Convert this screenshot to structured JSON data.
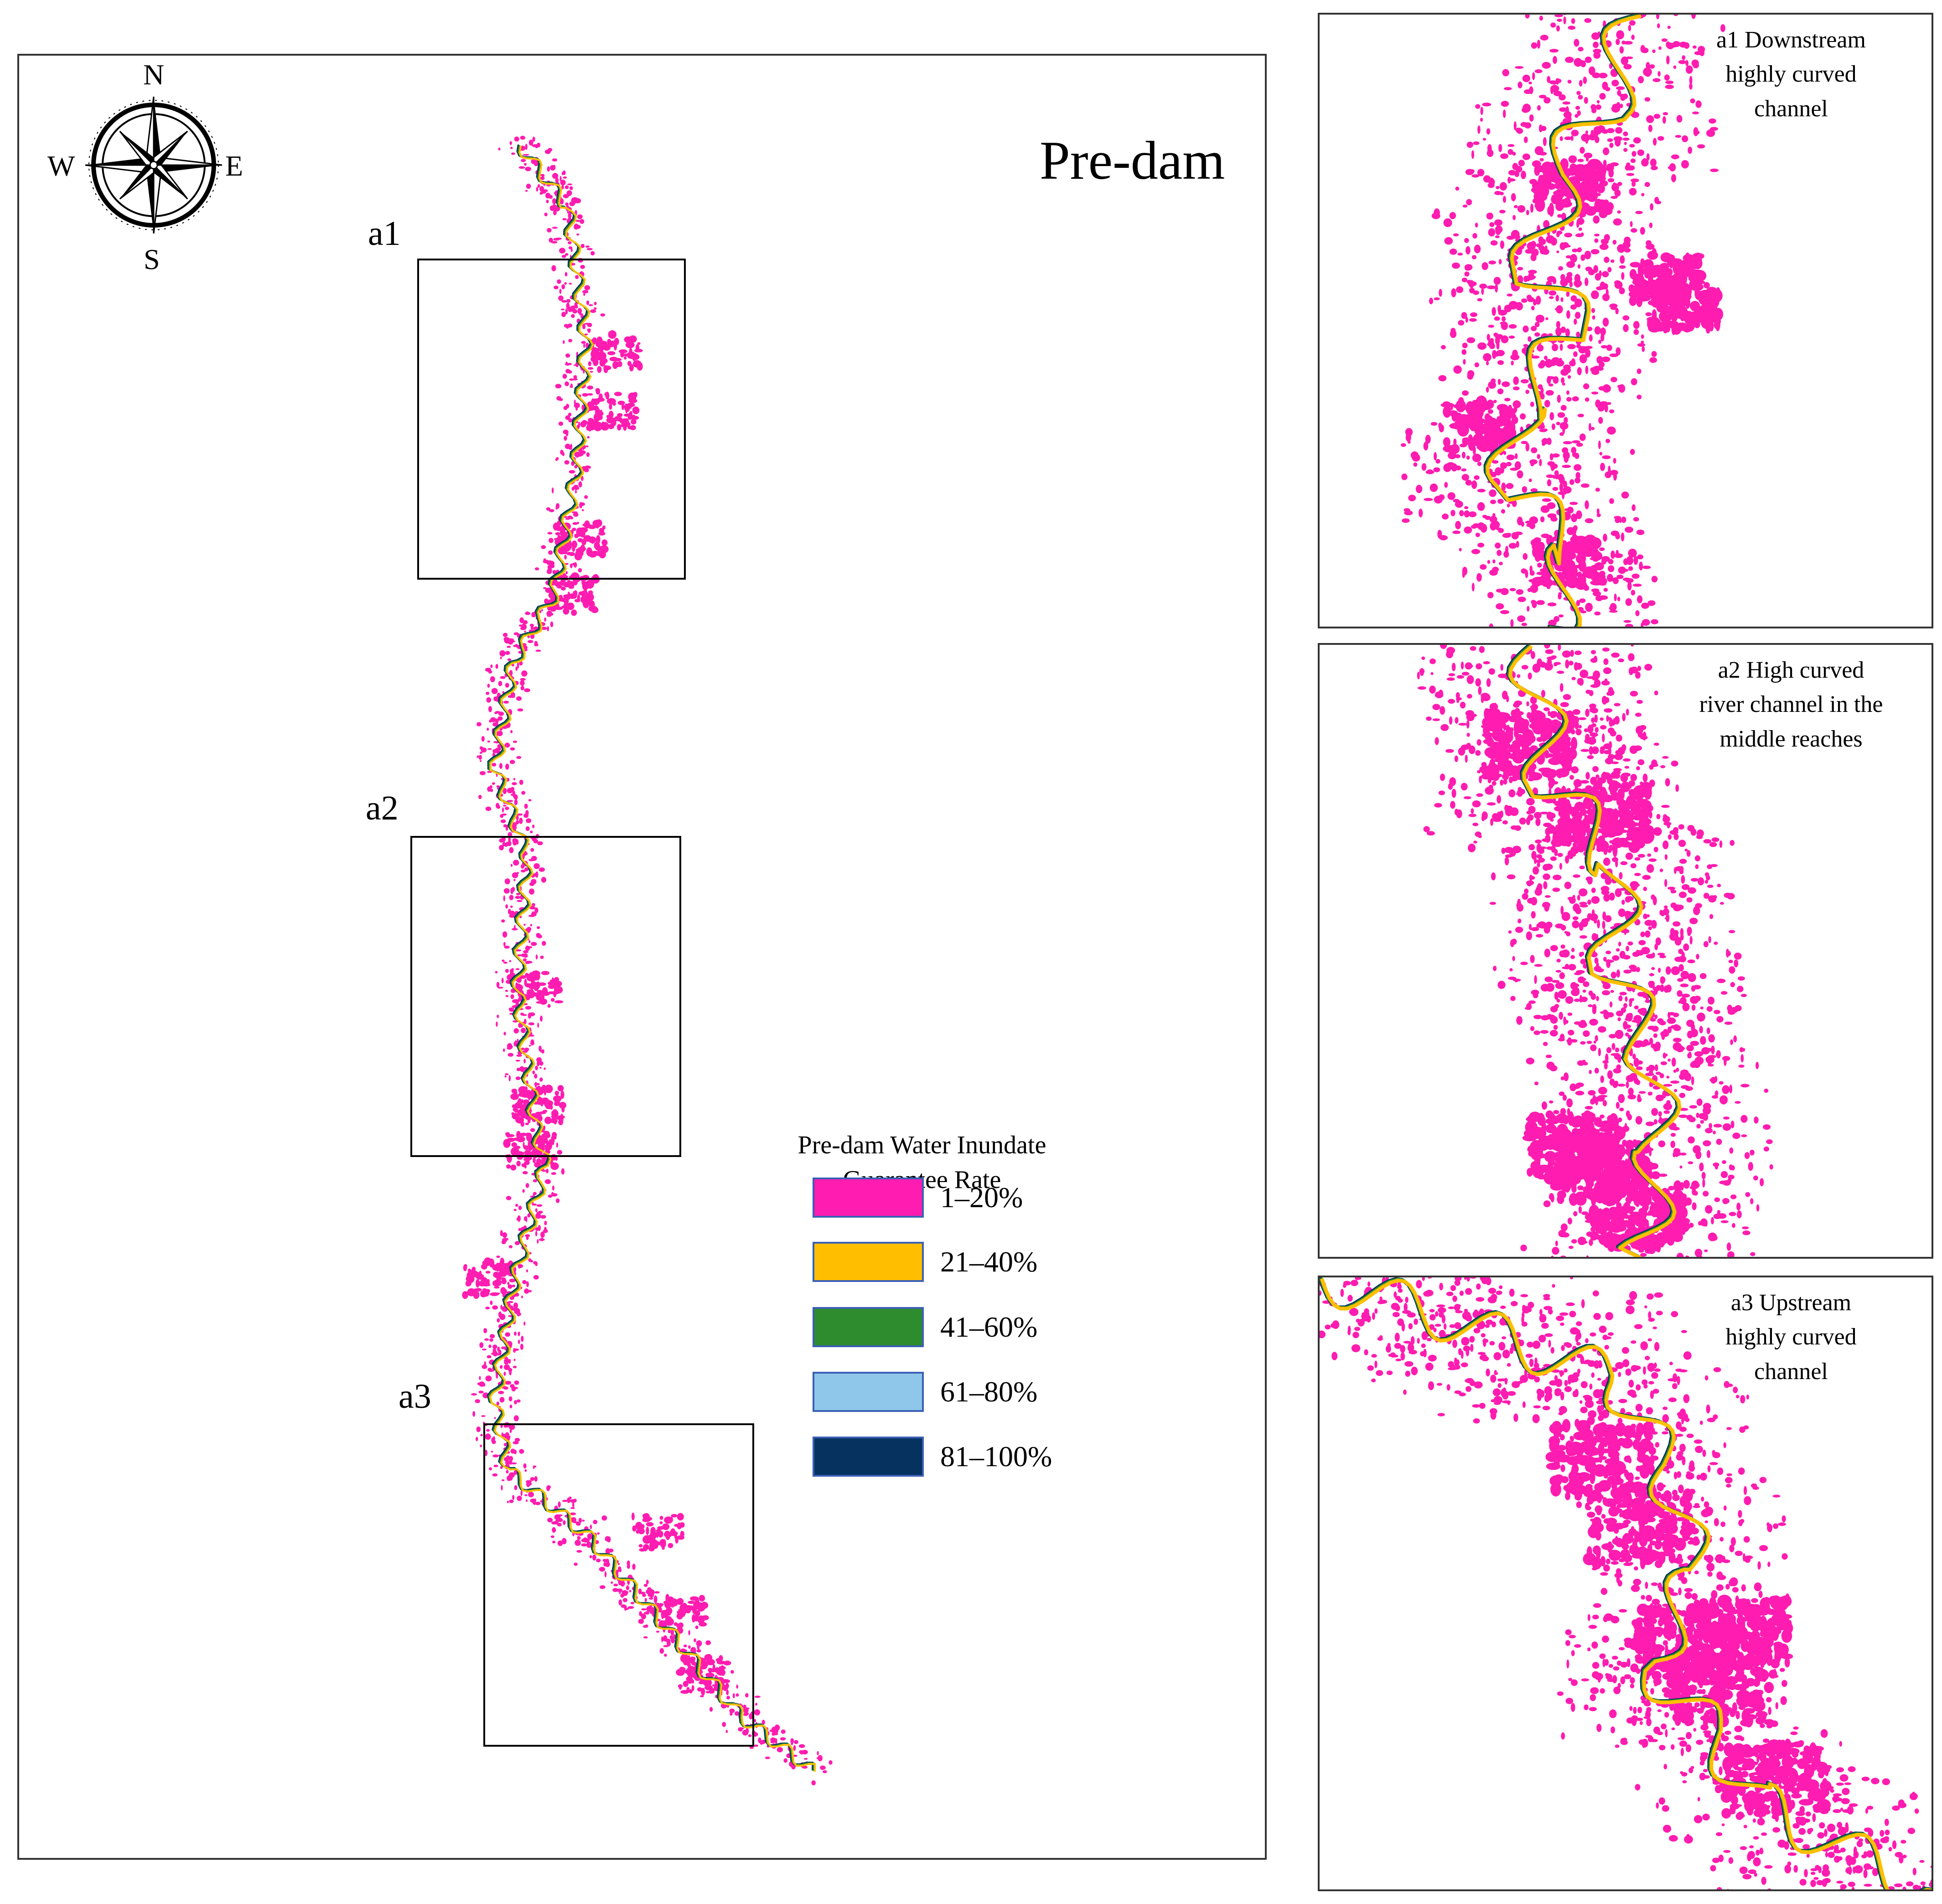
{
  "main_map": {
    "title": "Pre-dam",
    "compass": {
      "north": "N",
      "south": "S",
      "east": "E",
      "west": "W"
    },
    "zoom_boxes": [
      {
        "id": "a1",
        "label": "a1"
      },
      {
        "id": "a2",
        "label": "a2"
      },
      {
        "id": "a3",
        "label": "a3"
      }
    ]
  },
  "legend": {
    "title_line1": "Pre-dam Water Inundate",
    "title_line2": "Guarantee Rate",
    "classes": [
      {
        "label": "1–20%",
        "color": "#ff1cb0"
      },
      {
        "label": "21–40%",
        "color": "#ffbf00"
      },
      {
        "label": "41–60%",
        "color": "#2e8b2e"
      },
      {
        "label": "61–80%",
        "color": "#8fc7ea"
      },
      {
        "label": "81–100%",
        "color": "#05325f"
      }
    ]
  },
  "insets": [
    {
      "id": "a1",
      "caption_line1": "a1  Downstream",
      "caption_line2": "highly curved",
      "caption_line3": "channel"
    },
    {
      "id": "a2",
      "caption_line1": "a2  High curved",
      "caption_line2": "river channel in the",
      "caption_line3": "middle reaches"
    },
    {
      "id": "a3",
      "caption_line1": "a3  Upstream",
      "caption_line2": "highly curved",
      "caption_line3": "channel"
    }
  ],
  "colors": {
    "low_inundation": "#ff1cb0",
    "river_channel_a": "#05325f",
    "river_channel_b": "#2e8b2e",
    "river_channel_c": "#ffbf00",
    "frame": "#333333"
  }
}
